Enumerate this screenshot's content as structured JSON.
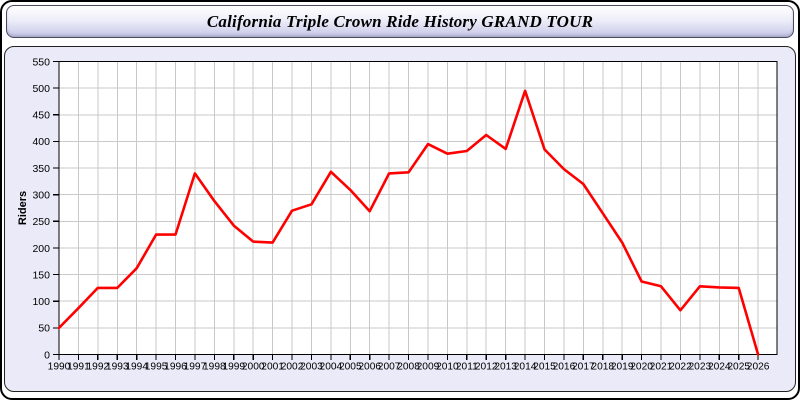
{
  "window": {
    "title": "California Triple Crown Ride History GRAND TOUR"
  },
  "colors": {
    "line": "#ff0000",
    "grid": "#c9c9c9",
    "plot_background": "#ffffff",
    "panel_background": "#eaeaf8",
    "axis": "#000000",
    "titlebar_gradient_top": "#ffffff",
    "titlebar_gradient_bottom": "#c6c6e7"
  },
  "chart_data": {
    "type": "line",
    "title": "California Triple Crown Ride History GRAND TOUR",
    "xlabel": "",
    "ylabel": "Riders",
    "ylim": [
      0,
      550
    ],
    "y_tick_step": 50,
    "grid": true,
    "legend_position": "none",
    "x": [
      1990,
      1991,
      1992,
      1993,
      1994,
      1995,
      1996,
      1997,
      1998,
      1999,
      2000,
      2001,
      2002,
      2003,
      2004,
      2005,
      2006,
      2007,
      2008,
      2009,
      2010,
      2011,
      2012,
      2013,
      2014,
      2015,
      2016,
      2017,
      2018,
      2019,
      2020,
      2021,
      2022,
      2023,
      2024,
      2025,
      2026
    ],
    "series": [
      {
        "name": "Riders",
        "color": "#ff0000",
        "values": [
          50,
          87,
          125,
          125,
          162,
          225,
          225,
          340,
          288,
          242,
          212,
          210,
          270,
          282,
          343,
          309,
          269,
          340,
          342,
          395,
          377,
          382,
          412,
          386,
          495,
          385,
          348,
          320,
          265,
          210,
          137,
          128,
          83,
          128,
          126,
          125,
          0
        ]
      }
    ]
  }
}
